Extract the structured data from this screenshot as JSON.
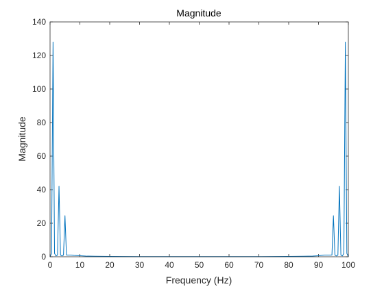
{
  "chart_data": {
    "type": "line",
    "title": "Magnitude",
    "xlabel": "Frequency (Hz)",
    "ylabel": "Magnitude",
    "xlim": [
      0,
      100
    ],
    "ylim": [
      0,
      140
    ],
    "xticks": [
      0,
      10,
      20,
      30,
      40,
      50,
      60,
      70,
      80,
      90,
      100
    ],
    "yticks": [
      0,
      20,
      40,
      60,
      80,
      100,
      120,
      140
    ],
    "grid": false,
    "line_color": "#0072BD",
    "axis_color": "#262626",
    "series": [
      {
        "x": [
          0,
          0.5,
          1,
          1.5,
          2,
          2.5,
          3,
          3.5,
          4,
          4.5,
          5,
          5.5,
          6,
          7,
          8,
          9,
          10,
          12,
          15,
          20,
          30,
          40,
          50,
          60,
          70,
          80,
          85,
          88,
          90,
          91,
          92,
          93,
          94,
          94.5,
          95,
          95.5,
          96,
          96.5,
          97,
          97.5,
          98,
          98.5,
          99,
          99.5,
          100
        ],
        "y": [
          0,
          2,
          128,
          2,
          0.5,
          1,
          42,
          1,
          0.5,
          1,
          24.5,
          1,
          1,
          1,
          0.8,
          0.7,
          0.6,
          0.4,
          0.3,
          0.2,
          0.1,
          0.1,
          0.1,
          0.1,
          0.1,
          0.2,
          0.3,
          0.4,
          0.6,
          0.8,
          1,
          1,
          1,
          1,
          24.5,
          1,
          0.5,
          1,
          42,
          1,
          0.5,
          2,
          128,
          2,
          0
        ]
      }
    ]
  }
}
